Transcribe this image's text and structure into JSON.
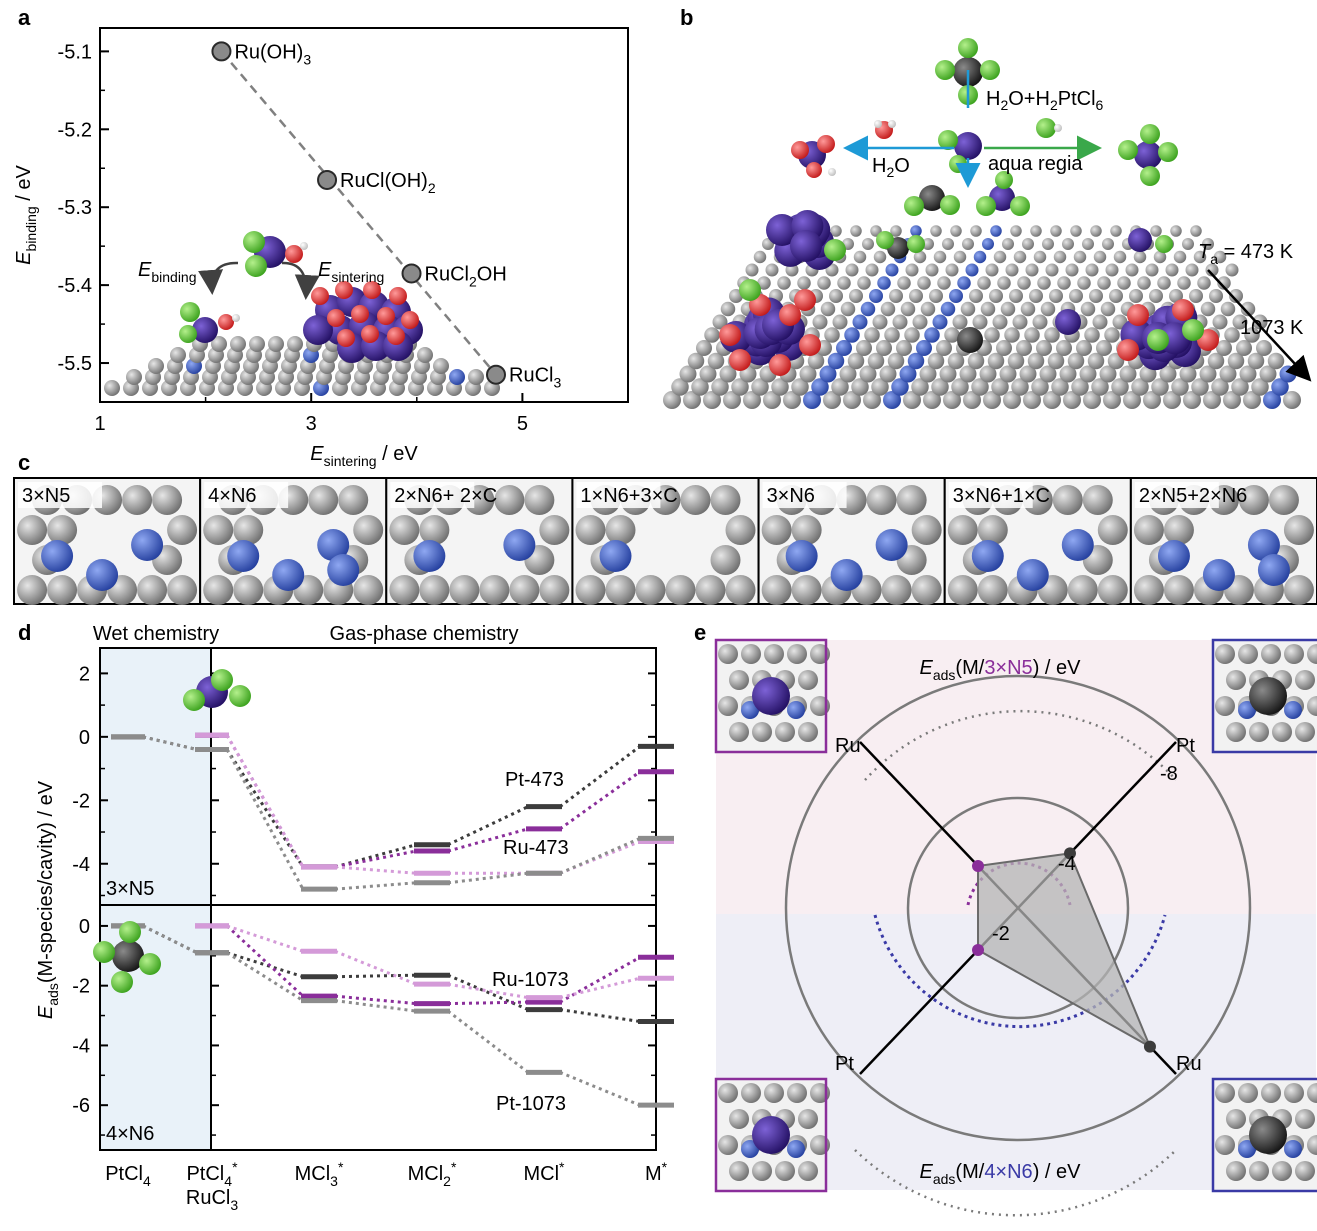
{
  "panels": {
    "a": "a",
    "b": "b",
    "c": "c",
    "d": "d",
    "e": "e"
  },
  "colors": {
    "ru": "#8a2e9a",
    "ru_light": "#d49ad8",
    "pt": "#3c3c3c",
    "pt_light": "#8c8c8c",
    "n_blue": "#3a5ccc",
    "c_gray": "#8f8f8f",
    "cl_green": "#5cc83a",
    "o_red": "#e23b3b"
  },
  "chart_data": [
    {
      "panel": "a",
      "type": "scatter",
      "xlabel": {
        "main": "E",
        "sub": "sintering",
        "rest": " / eV"
      },
      "ylabel": {
        "main": "E",
        "sub": "binding",
        "rest": " / eV"
      },
      "xlim": [
        1,
        6
      ],
      "ylim": [
        -5.55,
        -5.07
      ],
      "xticks": [
        1,
        3,
        5
      ],
      "yticks": [
        -5.1,
        -5.2,
        -5.3,
        -5.4,
        -5.5
      ],
      "points": [
        {
          "x": 2.15,
          "y": -5.1,
          "label": "Ru(OH)",
          "sub": "3",
          "after": ""
        },
        {
          "x": 3.15,
          "y": -5.265,
          "label": "RuCl(OH)",
          "sub": "2",
          "after": ""
        },
        {
          "x": 3.95,
          "y": -5.385,
          "label": "RuCl",
          "sub": "2",
          "after": "OH"
        },
        {
          "x": 4.75,
          "y": -5.515,
          "label": "RuCl",
          "sub": "3",
          "after": ""
        }
      ],
      "annotations": {
        "binding": {
          "main": "E",
          "sub": "binding"
        },
        "sintering": {
          "main": "E",
          "sub": "sintering"
        }
      }
    },
    {
      "panel": "d",
      "type": "line",
      "ylabel": {
        "main": "E",
        "sub": "ads",
        "rest": "(M-species/cavity) / eV"
      },
      "regions": {
        "wet": "Wet chemistry",
        "gas": "Gas-phase chemistry"
      },
      "x_categories": [
        {
          "main": "PtCl",
          "sub": "4",
          "sup": "",
          "line2": ""
        },
        {
          "main": "PtCl",
          "sub": "4",
          "sup": "*",
          "line2": "RuCl3"
        },
        {
          "main": "MCl",
          "sub": "3",
          "sup": "*",
          "line2": ""
        },
        {
          "main": "MCl",
          "sub": "2",
          "sup": "*",
          "line2": ""
        },
        {
          "main": "MCl",
          "sub": "",
          "sup": "*",
          "line2": ""
        },
        {
          "main": "M",
          "sub": "",
          "sup": "*",
          "line2": ""
        }
      ],
      "subpanels": [
        {
          "name": "3×N5",
          "ylim": [
            -5.3,
            2.8
          ],
          "yticks": [
            2,
            0,
            -2,
            -4
          ],
          "series": [
            {
              "name": "Pt-473",
              "color": "#3c3c3c",
              "values": [
                0,
                -0.4,
                -4.1,
                -3.4,
                -2.2,
                -0.3
              ]
            },
            {
              "name": "Ru-473",
              "color": "#8a2e9a",
              "values": [
                null,
                0.05,
                -4.1,
                -3.6,
                -2.9,
                -1.1
              ]
            },
            {
              "name": "",
              "color": "#d49ad8",
              "values": [
                null,
                0.05,
                -4.1,
                -4.3,
                -4.3,
                -3.3
              ]
            },
            {
              "name": "",
              "color": "#8c8c8c",
              "values": [
                0,
                -0.4,
                -4.8,
                -4.6,
                -4.3,
                -3.2
              ]
            }
          ]
        },
        {
          "name": "4×N6",
          "ylim": [
            -7.5,
            0.7
          ],
          "yticks": [
            0,
            -2,
            -4,
            -6
          ],
          "series": [
            {
              "name": "",
              "color": "#3c3c3c",
              "values": [
                0,
                -0.9,
                -1.7,
                -1.65,
                -2.8,
                -3.2
              ]
            },
            {
              "name": "",
              "color": "#8a2e9a",
              "values": [
                null,
                0,
                -2.35,
                -2.6,
                -2.55,
                -1.05
              ]
            },
            {
              "name": "Ru-1073",
              "color": "#d49ad8",
              "values": [
                null,
                0,
                -0.85,
                -1.95,
                -2.4,
                -1.75
              ]
            },
            {
              "name": "Pt-1073",
              "color": "#8c8c8c",
              "values": [
                0,
                -0.9,
                -2.5,
                -2.85,
                -4.9,
                -6.0
              ]
            }
          ]
        }
      ]
    },
    {
      "panel": "e",
      "type": "radar",
      "axis_labels": [
        "Ru",
        "Pt",
        "Ru",
        "Pt"
      ],
      "ring_ticks": [
        "-2",
        "-4",
        "-8"
      ],
      "top_title": {
        "main": "E",
        "sub": "ads",
        "pre": "(M/",
        "hi": "3×N5",
        "post": ") / eV"
      },
      "bottom_title": {
        "main": "E",
        "sub": "ads",
        "pre": "(M/",
        "hi": "4×N6",
        "post": ") / eV"
      },
      "values": [
        {
          "axis": "Ru-3×N5",
          "r": -2.0
        },
        {
          "axis": "Pt-3×N5",
          "r": -2.6
        },
        {
          "axis": "Pt-4×N6",
          "r": -6.6
        },
        {
          "axis": "Ru-4×N6",
          "r": -2.0
        }
      ]
    }
  ],
  "panel_b": {
    "labels": {
      "water": "H",
      "water_sub": "2",
      "water_after": "O",
      "acid_pre": "H",
      "acid_sub1": "2",
      "acid_mid": "O+H",
      "acid_sub2": "2",
      "acid_mid2": "PtCl",
      "acid_sub3": "6",
      "aqua": "aqua regia",
      "temp1": "T",
      "temp1_sub": "a",
      "temp1_rest": " = 473 K",
      "temp2": "1073 K"
    }
  },
  "panel_c": {
    "cavities": [
      "3×N5",
      "4×N6",
      "2×N6+ 2×C",
      "1×N6+3×C",
      "3×N6",
      "3×N6+1×C",
      "2×N5+2×N6"
    ]
  }
}
